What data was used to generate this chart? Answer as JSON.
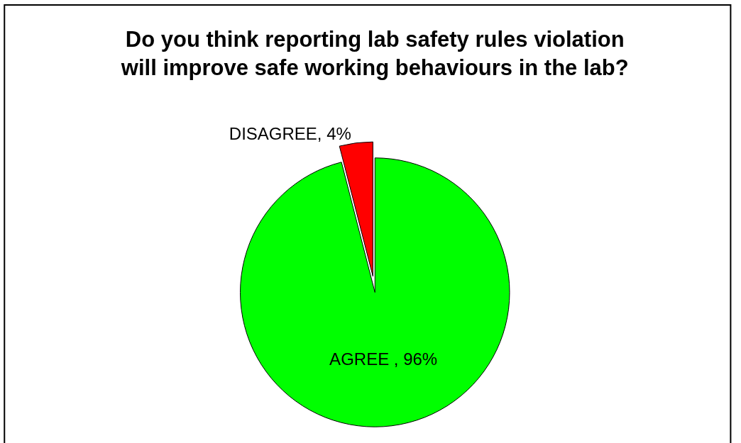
{
  "chart_data": {
    "type": "pie",
    "title": "Do you think reporting lab safety rules violation\nwill improve safe working behaviours in the lab?",
    "categories": [
      "AGREE ",
      "DISAGREE"
    ],
    "values": [
      96,
      4
    ],
    "colors": [
      "#00ff00",
      "#ff0000"
    ],
    "value_labels": [
      "96%",
      "4%"
    ]
  }
}
